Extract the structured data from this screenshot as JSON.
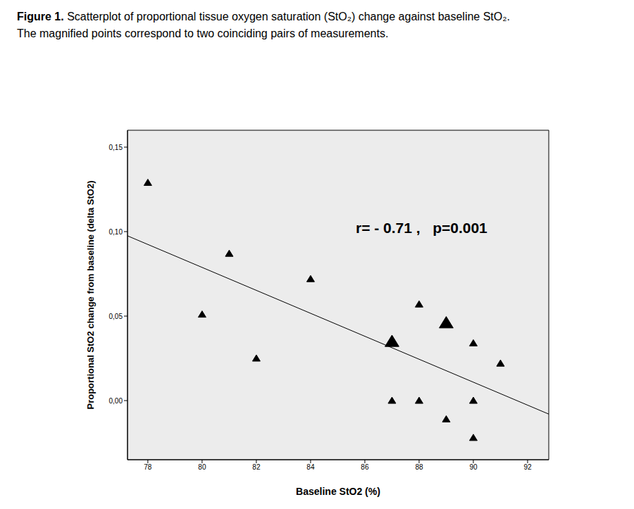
{
  "chart_data": {
    "type": "scatter",
    "figure_label": "Figure 1.",
    "caption": [
      "Scatterplot of proportional tissue oxygen saturation (StO₂) change against baseline StO₂.",
      "The magnified points correspond to two coinciding pairs of measurements."
    ],
    "xlabel": "Baseline StO2 (%)",
    "ylabel": "Proportional StO2 change from baseline (delta StO2)",
    "annotation": "r= - 0.71 ,   p=0.001",
    "x": [
      78,
      80,
      81,
      82,
      84,
      87,
      87,
      87,
      88,
      88,
      89,
      89,
      89,
      90,
      90,
      90,
      91
    ],
    "values": [
      0.129,
      0.051,
      0.087,
      0.025,
      0.072,
      0.035,
      0.035,
      0.0,
      0.057,
      0.0,
      0.046,
      0.046,
      -0.011,
      0.034,
      0.0,
      -0.022,
      0.022
    ],
    "xlim": [
      77.25,
      92.78
    ],
    "ylim": [
      -0.035,
      0.16
    ],
    "xticks": [
      78,
      80,
      82,
      84,
      86,
      88,
      90,
      92
    ],
    "yticks": [
      {
        "value": 0,
        "label": "0,00"
      },
      {
        "value": 0.05,
        "label": "0,05"
      },
      {
        "value": 0.1,
        "label": "0,10"
      },
      {
        "value": 0.15,
        "label": "0,15"
      }
    ],
    "trend_line": {
      "x": [
        77.25,
        92.78
      ],
      "values": [
        0.0975,
        -0.008
      ]
    },
    "color": "#000000",
    "marker": "triangle",
    "grid": false
  }
}
